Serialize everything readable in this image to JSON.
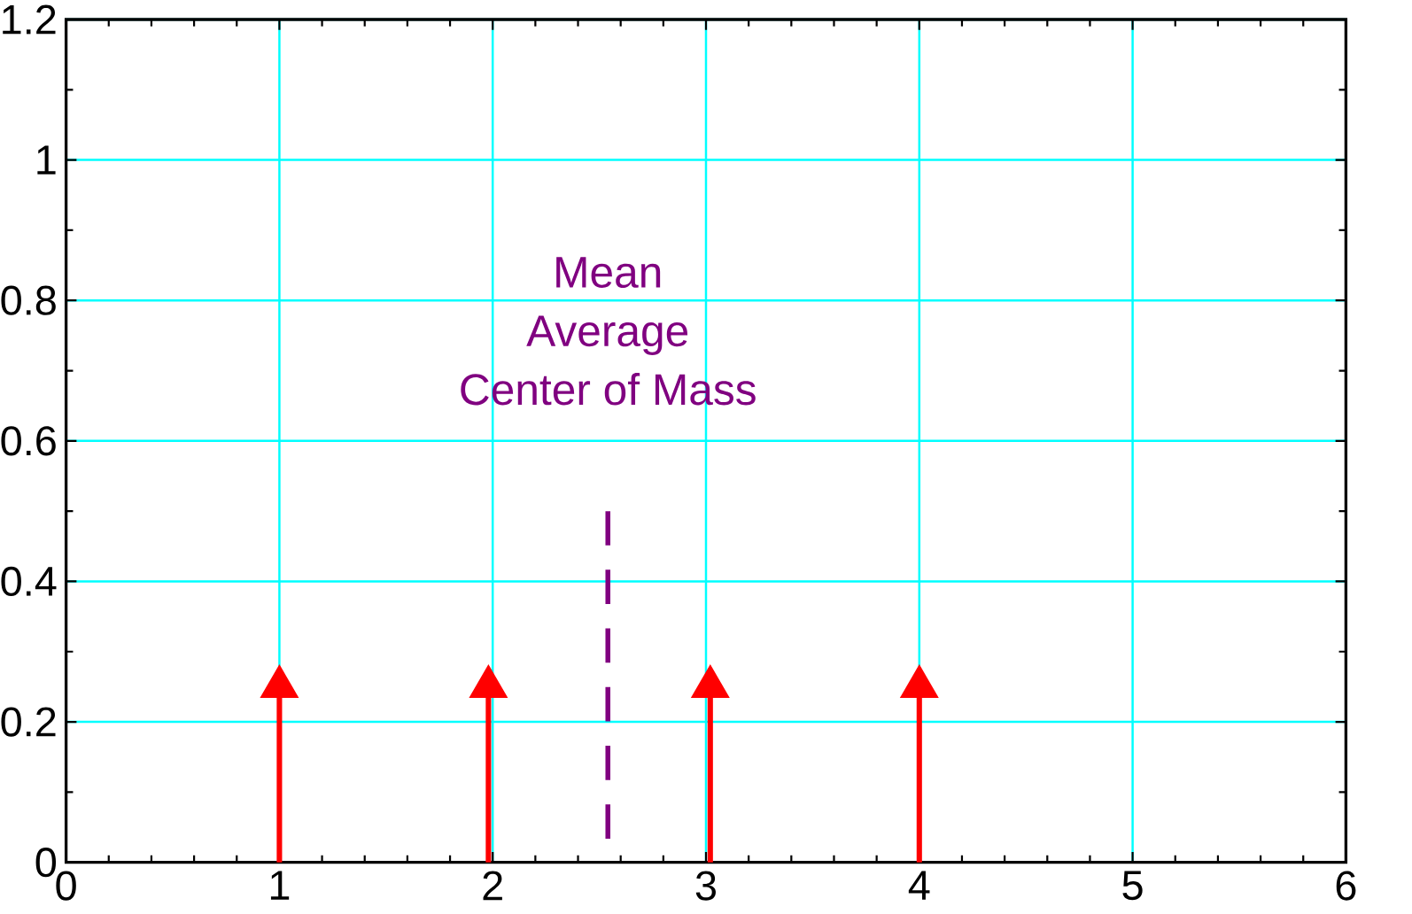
{
  "chart_data": {
    "type": "lollipop",
    "xlim": [
      0,
      6
    ],
    "xticks": [
      0,
      1,
      2,
      3,
      4,
      5,
      6
    ],
    "ylim": [
      0,
      1.2
    ],
    "yticks": [
      0,
      0.2,
      0.4,
      0.6,
      0.8,
      1,
      1.2
    ],
    "grid": true,
    "series": [
      {
        "marker": "triangle",
        "color": "#ff0000",
        "x": [
          1,
          1.98,
          3.02,
          4
        ],
        "values": [
          0.25,
          0.25,
          0.25,
          0.25
        ]
      },
      {
        "type": "line",
        "color": "#800080",
        "line_style": "dashed",
        "x": [
          2.54,
          2.54
        ],
        "values": [
          0,
          0.5
        ]
      }
    ],
    "annotations": [
      "Mean",
      "Average",
      "Center of Mass"
    ]
  }
}
